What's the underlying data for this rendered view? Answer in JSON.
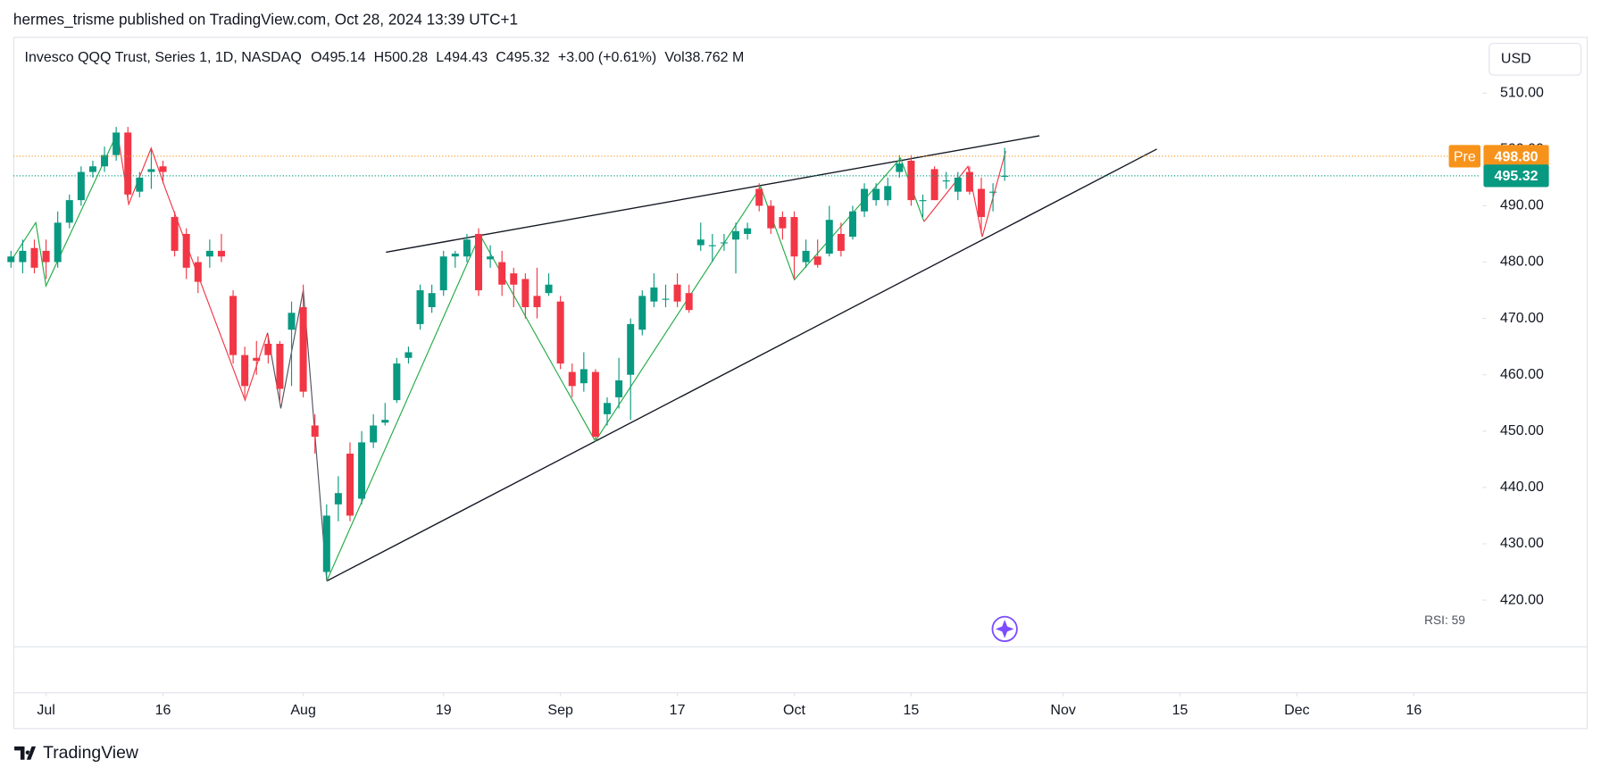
{
  "header": {
    "title": "hermes_trisme published on TradingView.com, Oct 28, 2024 13:39 UTC+1"
  },
  "footer": {
    "brand": "TradingView"
  },
  "chart_data": {
    "type": "candlestick",
    "title": "Invesco QQQ Trust, Series 1, 1D, NASDAQ",
    "legend_items": [
      "O495.14",
      "H500.28",
      "L494.43",
      "C495.32",
      "+3.00 (+0.61%)",
      "Vol38.762 M"
    ],
    "currency": "USD",
    "indicator": "RSI: 59",
    "up_color": "#089981",
    "down_color": "#f23645",
    "x": [
      -3,
      -2,
      -1,
      0,
      1,
      2,
      3,
      4,
      5,
      6,
      7,
      8,
      9,
      10,
      11,
      12,
      13,
      14,
      15,
      16,
      17,
      18,
      19,
      20,
      21,
      22,
      23,
      24,
      25,
      26,
      27,
      28,
      29,
      30,
      31,
      32,
      33,
      34,
      35,
      36,
      37,
      38,
      39,
      40,
      41,
      42,
      43,
      44,
      45,
      46,
      47,
      48,
      49,
      50,
      51,
      52,
      53,
      54,
      55,
      56,
      57,
      58,
      59,
      60,
      61,
      62,
      63,
      64,
      65,
      66,
      67,
      68,
      69,
      70,
      71,
      72,
      73,
      74,
      75,
      76,
      77,
      78,
      79,
      80,
      81,
      82
    ],
    "open": [
      480,
      480,
      482.5,
      482,
      480,
      487,
      491,
      496,
      497,
      499,
      503,
      492.5,
      496,
      497,
      488,
      485,
      480,
      481,
      482,
      474,
      463.5,
      463,
      465.5,
      465.5,
      468,
      472,
      451,
      425,
      437,
      446,
      438,
      448,
      451.5,
      455.5,
      463,
      469,
      472,
      475,
      481,
      481,
      485,
      480.5,
      480,
      478,
      477,
      474,
      474.5,
      473,
      460.5,
      458.5,
      460.5,
      453,
      456,
      460,
      468,
      473,
      473.5,
      476,
      474.5,
      483,
      483,
      483.5,
      484,
      485,
      493,
      490,
      488,
      488,
      480,
      481,
      481.5,
      485,
      484.5,
      489,
      491,
      491,
      496,
      498,
      491,
      496.5,
      494.5,
      492.5,
      496,
      493,
      492.5,
      495.14
    ],
    "high": [
      482,
      484,
      484,
      484,
      489,
      492,
      497,
      498,
      500.5,
      504,
      504,
      496,
      500,
      498,
      489,
      486,
      481,
      484,
      485,
      475,
      465,
      466,
      467,
      466,
      473,
      476,
      453,
      437,
      442,
      448,
      450,
      453,
      455,
      463,
      465,
      476,
      476,
      482,
      482,
      485,
      486,
      483,
      482,
      479,
      478,
      479,
      478,
      474,
      462,
      464,
      461,
      456,
      463,
      470,
      475,
      478,
      476,
      478,
      476,
      487,
      485,
      485,
      487,
      487,
      494,
      491,
      489,
      489,
      484,
      484,
      490,
      487,
      490,
      494,
      494,
      495,
      499,
      499,
      492,
      497,
      496,
      496,
      497,
      495,
      494,
      500.28
    ],
    "low": [
      479,
      478,
      478,
      477,
      479,
      486,
      490,
      495,
      496,
      498,
      491,
      491.5,
      493,
      494,
      481,
      477,
      474.5,
      479,
      480,
      462,
      456,
      460,
      462,
      455,
      458,
      456,
      446,
      424,
      434,
      434,
      437,
      447,
      451,
      455,
      462,
      468,
      471,
      474,
      479,
      480,
      474,
      479,
      474,
      472,
      470,
      470,
      474,
      461,
      456,
      457,
      448.5,
      451,
      454,
      452,
      467,
      472,
      472,
      472,
      471,
      482,
      480,
      482,
      478,
      484,
      489,
      485,
      484,
      477,
      479,
      479,
      481,
      481,
      484,
      488,
      490,
      490,
      495,
      490,
      488,
      491,
      493,
      491,
      492,
      485,
      489,
      494.43
    ],
    "close": [
      481,
      482,
      479,
      480,
      487,
      491,
      496,
      497,
      499,
      503,
      492,
      495,
      496.5,
      496,
      482,
      479,
      476.5,
      482,
      481,
      463.5,
      458,
      462.5,
      463.5,
      457.5,
      471,
      457,
      449,
      435,
      439,
      435,
      448,
      451,
      452,
      462,
      464,
      475,
      474.5,
      481,
      481.5,
      484,
      475,
      481,
      476,
      476,
      472,
      472,
      476,
      462,
      458,
      461,
      449,
      455,
      459,
      469,
      474,
      475.5,
      473.5,
      473,
      471.5,
      484,
      483,
      483.5,
      485.5,
      486,
      490,
      486,
      486,
      481,
      482,
      479.5,
      487.5,
      482,
      489,
      493,
      493,
      493.5,
      497.5,
      491,
      491,
      491,
      494.5,
      495,
      492.5,
      488,
      492.5,
      495.32
    ],
    "xlim": [
      -2.8,
      122.7
    ],
    "xticks": [
      {
        "value": 0,
        "label": "Jul"
      },
      {
        "value": 10,
        "label": "16"
      },
      {
        "value": 22,
        "label": "Aug"
      },
      {
        "value": 34,
        "label": "19"
      },
      {
        "value": 44,
        "label": "Sep"
      },
      {
        "value": 54,
        "label": "17"
      },
      {
        "value": 64,
        "label": "Oct"
      },
      {
        "value": 74,
        "label": "15"
      },
      {
        "value": 87,
        "label": "Nov"
      },
      {
        "value": 97,
        "label": "15"
      },
      {
        "value": 107,
        "label": "Dec"
      },
      {
        "value": 117,
        "label": "16"
      }
    ],
    "ylim": [
      411.8,
      520.0
    ],
    "yticks": [
      {
        "value": 420,
        "label": "420.00"
      },
      {
        "value": 430,
        "label": "430.00"
      },
      {
        "value": 440,
        "label": "440.00"
      },
      {
        "value": 450,
        "label": "450.00"
      },
      {
        "value": 460,
        "label": "460.00"
      },
      {
        "value": 470,
        "label": "470.00"
      },
      {
        "value": 480,
        "label": "480.00"
      },
      {
        "value": 490,
        "label": "490.00"
      },
      {
        "value": 500,
        "label": "500.00"
      },
      {
        "value": 510,
        "label": "510.00"
      }
    ],
    "price_lines": [
      {
        "label": "Pre",
        "value": 498.8,
        "value_label": "498.80",
        "color": "#f7931a"
      },
      {
        "value": 495.32,
        "value_label": "495.32",
        "color": "#089981"
      }
    ]
  }
}
